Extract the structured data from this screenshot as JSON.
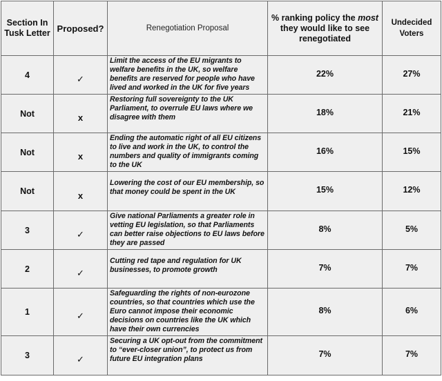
{
  "header": {
    "section": "Section In Tusk Letter",
    "proposed": "Proposed?",
    "proposal": "Renegotiation Proposal",
    "ranking_before": "% ranking policy the ",
    "ranking_em": "most",
    "ranking_after": " they would like to see renegotiated",
    "undecided": "Undecided Voters"
  },
  "rows": [
    {
      "section": "4",
      "proposed": "✓",
      "proposal": "Limit the access of the EU migrants to welfare benefits in the UK, so welfare benefits are reserved for people who have lived and worked in the UK for five years",
      "ranking": "22%",
      "undecided": "27%"
    },
    {
      "section": "Not",
      "proposed": "x",
      "proposal": "Restoring full sovereignty to the UK Parliament, to overrule EU laws where we disagree with them",
      "ranking": "18%",
      "undecided": "21%"
    },
    {
      "section": "Not",
      "proposed": "x",
      "proposal": "Ending the automatic right of all EU citizens to live and work in the UK, to control the numbers and quality of immigrants coming to the UK",
      "ranking": "16%",
      "undecided": "15%"
    },
    {
      "section": "Not",
      "proposed": "x",
      "proposal": "Lowering the cost of our EU membership, so that money could be spent in the UK",
      "ranking": "15%",
      "undecided": "12%"
    },
    {
      "section": "3",
      "proposed": "✓",
      "proposal": "Give national Parliaments a greater role in vetting EU legislation, so that Parliaments can better raise objections to EU laws before they are passed",
      "ranking": "8%",
      "undecided": "5%"
    },
    {
      "section": "2",
      "proposed": "✓",
      "proposal": "Cutting red tape and regulation for UK businesses, to promote growth",
      "ranking": "7%",
      "undecided": "7%"
    },
    {
      "section": "1",
      "proposed": "✓",
      "proposal": "Safeguarding the rights of non-eurozone countries, so that countries which use the Euro cannot impose their economic decisions on countries like the UK which have their own currencies",
      "ranking": "8%",
      "undecided": "6%"
    },
    {
      "section": "3",
      "proposed": "✓",
      "proposal": "Securing a UK opt-out from the commitment to “ever-closer union”, to protect us from future EU integration plans",
      "ranking": "7%",
      "undecided": "7%"
    }
  ]
}
